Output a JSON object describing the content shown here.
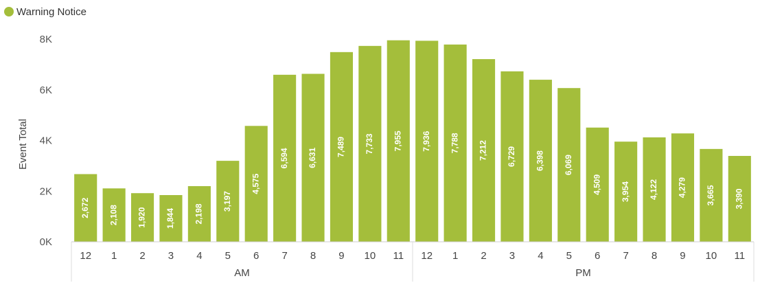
{
  "legend": {
    "label": "Warning Notice",
    "color": "#a4be3b"
  },
  "chart_data": {
    "type": "bar",
    "title": "",
    "ylabel": "Event Total",
    "xlabel": "",
    "ylim": [
      0,
      8000
    ],
    "yticks": [
      0,
      2000,
      4000,
      6000,
      8000
    ],
    "ytick_labels": [
      "0K",
      "2K",
      "4K",
      "6K",
      "8K"
    ],
    "categories": [
      "12",
      "1",
      "2",
      "3",
      "4",
      "5",
      "6",
      "7",
      "8",
      "9",
      "10",
      "11",
      "12",
      "1",
      "2",
      "3",
      "4",
      "5",
      "6",
      "7",
      "8",
      "9",
      "10",
      "11"
    ],
    "groups": [
      {
        "label": "AM",
        "start": 0,
        "end": 11
      },
      {
        "label": "PM",
        "start": 12,
        "end": 23
      }
    ],
    "series": [
      {
        "name": "Warning Notice",
        "color": "#a4be3b",
        "values": [
          2672,
          2108,
          1920,
          1844,
          2198,
          3197,
          4575,
          6594,
          6631,
          7489,
          7733,
          7955,
          7936,
          7788,
          7212,
          6729,
          6398,
          6069,
          4509,
          3954,
          4122,
          4279,
          3665,
          3390
        ],
        "labels": [
          "2,672",
          "2,108",
          "1,920",
          "1,844",
          "2,198",
          "3,197",
          "4,575",
          "6,594",
          "6,631",
          "7,489",
          "7,733",
          "7,955",
          "7,936",
          "7,788",
          "7,212",
          "6,729",
          "6,398",
          "6,069",
          "4,509",
          "3,954",
          "4,122",
          "4,279",
          "3,665",
          "3,390"
        ]
      }
    ],
    "grid": false,
    "legend_position": "top-left"
  }
}
